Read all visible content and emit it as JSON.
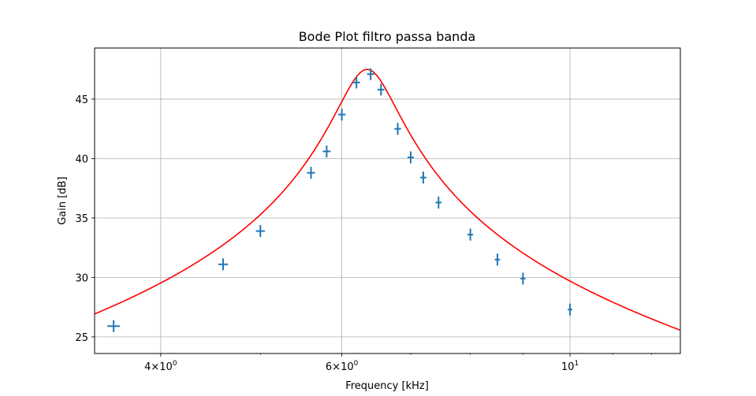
{
  "chart_data": {
    "type": "scatter",
    "title": "Bode Plot filtro passa banda",
    "xlabel": "Frequency [kHz]",
    "ylabel": "Gain [dB]",
    "x_scale": "log",
    "xlim": [
      3.45,
      12.8
    ],
    "ylim": [
      23.6,
      49.3
    ],
    "grid": true,
    "x_ticks": [
      {
        "value": 4,
        "base": "4",
        "exp": "0"
      },
      {
        "value": 6,
        "base": "6",
        "exp": "0"
      },
      {
        "value": 10,
        "base": "10",
        "exp": "1"
      }
    ],
    "y_ticks": [
      25,
      30,
      35,
      40,
      45
    ],
    "colors": {
      "fit": "#ff0000",
      "data": "#1f77b4"
    },
    "series": [
      {
        "kind": "errorbar",
        "x": [
          3.6,
          4.6,
          5.0,
          5.6,
          5.8,
          6.0,
          6.2,
          6.4,
          6.55,
          6.8,
          7.0,
          7.2,
          7.45,
          8.0,
          8.5,
          9.0,
          10.0
        ],
        "y": [
          25.9,
          31.1,
          33.9,
          38.8,
          40.6,
          43.7,
          46.4,
          47.1,
          45.8,
          42.5,
          40.1,
          38.4,
          36.3,
          33.6,
          31.5,
          29.9,
          27.3
        ],
        "yerr": 0.5,
        "xerr": 0.05
      },
      {
        "kind": "line",
        "model": "bandpass",
        "f0": 6.35,
        "Q": 8.2,
        "peak_gain": 47.5,
        "x_range": [
          3.45,
          12.8
        ]
      }
    ]
  }
}
